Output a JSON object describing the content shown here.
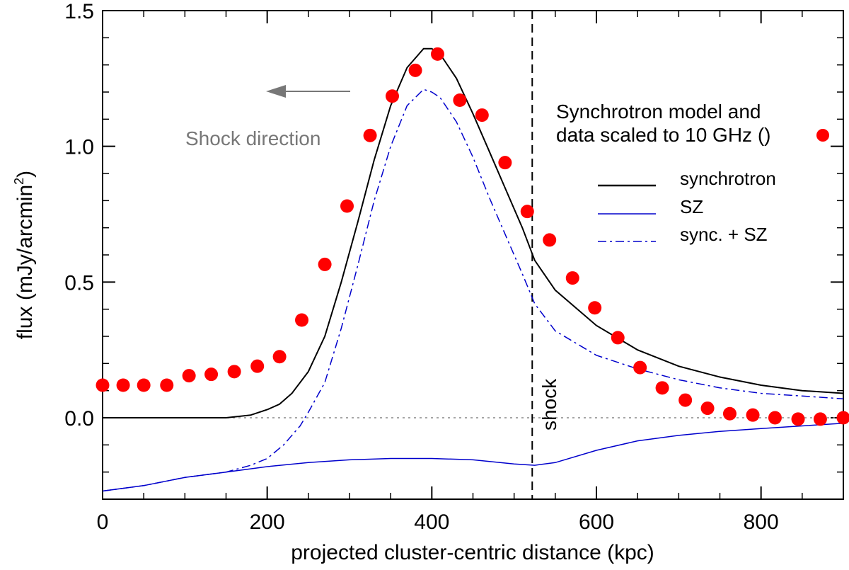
{
  "chart_data": {
    "type": "line",
    "xlabel": "projected cluster-centric distance (kpc)",
    "ylabel": "flux (mJy/arcmin",
    "ylabel_sup": "2",
    "ylabel_close": ")",
    "xlim": [
      0,
      900
    ],
    "ylim": [
      -0.3,
      1.5
    ],
    "x_ticks": [
      0,
      200,
      400,
      600,
      800
    ],
    "x_tick_labels": [
      "0",
      "200",
      "400",
      "600",
      "800"
    ],
    "y_ticks": [
      0.0,
      0.5,
      1.0,
      1.5
    ],
    "y_tick_labels": [
      "0.0",
      "0.5",
      "1.0",
      "1.5"
    ],
    "colors": {
      "synchrotron": "#000000",
      "sz": "#0000cc",
      "sync_sz": "#0000cc",
      "data": "#ff0000",
      "arrow": "#777777",
      "zero": "#888888"
    },
    "series": [
      {
        "name": "synchrotron",
        "style": "solid",
        "x": [
          0,
          50,
          100,
          150,
          165,
          180,
          200,
          215,
          230,
          250,
          270,
          290,
          310,
          330,
          350,
          370,
          390,
          400,
          410,
          430,
          450,
          470,
          490,
          510,
          525,
          550,
          600,
          650,
          700,
          750,
          800,
          850,
          900
        ],
        "y": [
          0,
          0,
          0,
          0,
          0.005,
          0.01,
          0.03,
          0.05,
          0.09,
          0.17,
          0.3,
          0.5,
          0.72,
          0.95,
          1.15,
          1.29,
          1.36,
          1.36,
          1.34,
          1.25,
          1.12,
          0.98,
          0.84,
          0.7,
          0.58,
          0.47,
          0.34,
          0.25,
          0.19,
          0.15,
          0.12,
          0.1,
          0.09
        ]
      },
      {
        "name": "SZ",
        "style": "solid",
        "x": [
          0,
          50,
          100,
          150,
          200,
          250,
          300,
          350,
          400,
          450,
          500,
          525,
          550,
          600,
          650,
          700,
          750,
          800,
          850,
          900
        ],
        "y": [
          -0.27,
          -0.25,
          -0.22,
          -0.2,
          -0.18,
          -0.165,
          -0.155,
          -0.15,
          -0.15,
          -0.155,
          -0.17,
          -0.175,
          -0.165,
          -0.12,
          -0.085,
          -0.065,
          -0.05,
          -0.04,
          -0.03,
          -0.02
        ]
      },
      {
        "name": "sync. + SZ",
        "style": "dashdot",
        "x": [
          0,
          50,
          100,
          150,
          180,
          200,
          220,
          240,
          250,
          270,
          290,
          310,
          330,
          350,
          370,
          390,
          400,
          410,
          430,
          450,
          470,
          490,
          510,
          525,
          550,
          600,
          650,
          700,
          750,
          800,
          850,
          900
        ],
        "y": [
          -0.27,
          -0.25,
          -0.22,
          -0.2,
          -0.175,
          -0.15,
          -0.1,
          -0.03,
          0.02,
          0.13,
          0.33,
          0.56,
          0.8,
          1.0,
          1.15,
          1.21,
          1.2,
          1.18,
          1.09,
          0.96,
          0.81,
          0.67,
          0.53,
          0.42,
          0.32,
          0.23,
          0.18,
          0.14,
          0.11,
          0.09,
          0.08,
          0.07
        ]
      },
      {
        "name": "data",
        "style": "dots",
        "x": [
          0,
          25,
          50,
          78,
          105,
          132,
          160,
          188,
          215,
          242,
          270,
          297,
          325,
          352,
          380,
          407,
          434,
          461,
          489,
          516,
          543,
          571,
          598,
          626,
          653,
          680,
          708,
          735,
          762,
          790,
          817,
          845,
          872,
          900
        ],
        "y": [
          0.12,
          0.12,
          0.12,
          0.12,
          0.155,
          0.16,
          0.17,
          0.19,
          0.225,
          0.36,
          0.565,
          0.78,
          1.04,
          1.185,
          1.28,
          1.34,
          1.17,
          1.115,
          0.94,
          0.76,
          0.655,
          0.515,
          0.405,
          0.295,
          0.185,
          0.11,
          0.065,
          0.035,
          0.015,
          0.01,
          0.0,
          -0.005,
          -0.005,
          0.0
        ]
      }
    ],
    "annotations": {
      "shock_x": 522,
      "shock_label": "shock",
      "shock_direction_label": "Shock direction",
      "model_line1": "Synchrotron model and",
      "model_line2": "data scaled to 10 GHz (",
      "model_line2_close": ")"
    },
    "legend": {
      "placement": "upper-right",
      "entries": [
        {
          "label": "synchrotron",
          "style": "solid",
          "color": "#000000"
        },
        {
          "label": "SZ",
          "style": "solid",
          "color": "#0000cc"
        },
        {
          "label": "sync. + SZ",
          "style": "dashdot",
          "color": "#0000cc"
        }
      ]
    }
  }
}
